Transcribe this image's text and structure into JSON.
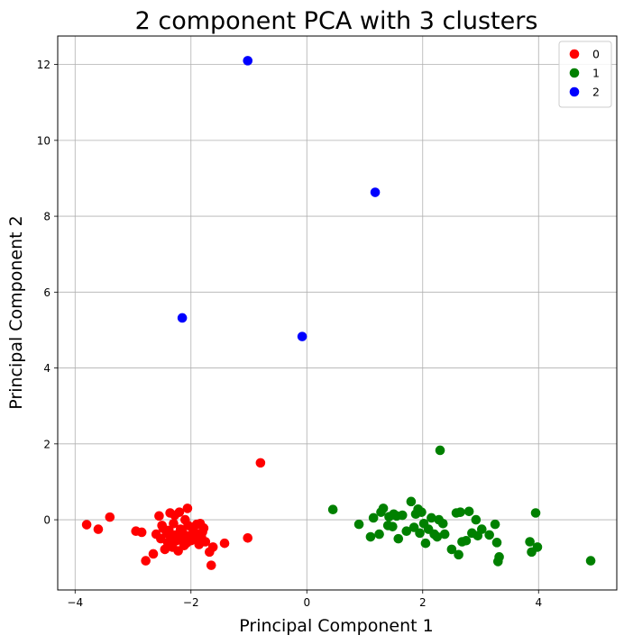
{
  "chart_data": {
    "type": "scatter",
    "title": "2 component PCA with 3 clusters",
    "xlabel": "Principal Component 1",
    "ylabel": "Principal Component 2",
    "xlim": [
      -4.3,
      5.35
    ],
    "ylim": [
      -1.85,
      12.75
    ],
    "xticks": [
      -4,
      -2,
      0,
      2,
      4
    ],
    "yticks": [
      0,
      2,
      4,
      6,
      8,
      10,
      12
    ],
    "grid": true,
    "legend_position": "top-right",
    "series": [
      {
        "name": "0",
        "color": "#ff0000",
        "points": [
          [
            -3.8,
            -0.13
          ],
          [
            -3.6,
            -0.25
          ],
          [
            -3.4,
            0.07
          ],
          [
            -2.95,
            -0.3
          ],
          [
            -2.85,
            -0.33
          ],
          [
            -2.78,
            -1.08
          ],
          [
            -2.65,
            -0.9
          ],
          [
            -2.6,
            -0.38
          ],
          [
            -2.55,
            0.1
          ],
          [
            -2.52,
            -0.5
          ],
          [
            -2.5,
            -0.15
          ],
          [
            -2.48,
            -0.22
          ],
          [
            -2.45,
            -0.78
          ],
          [
            -2.42,
            -0.35
          ],
          [
            -2.4,
            -0.6
          ],
          [
            -2.38,
            -0.28
          ],
          [
            -2.36,
            0.18
          ],
          [
            -2.35,
            -0.45
          ],
          [
            -2.32,
            -0.72
          ],
          [
            -2.3,
            -0.1
          ],
          [
            -2.28,
            0.12
          ],
          [
            -2.26,
            -0.4
          ],
          [
            -2.25,
            -0.55
          ],
          [
            -2.22,
            -0.82
          ],
          [
            -2.2,
            0.2
          ],
          [
            -2.18,
            -0.25
          ],
          [
            -2.16,
            -0.5
          ],
          [
            -2.14,
            -0.35
          ],
          [
            -2.12,
            -0.68
          ],
          [
            -2.1,
            0.0
          ],
          [
            -2.08,
            -0.62
          ],
          [
            -2.06,
            0.3
          ],
          [
            -2.05,
            -0.15
          ],
          [
            -2.03,
            -0.42
          ],
          [
            -2.0,
            -0.55
          ],
          [
            -1.98,
            -0.2
          ],
          [
            -1.95,
            -0.3
          ],
          [
            -1.92,
            -0.48
          ],
          [
            -1.9,
            -0.12
          ],
          [
            -1.88,
            -0.38
          ],
          [
            -1.86,
            -0.65
          ],
          [
            -1.84,
            -0.1
          ],
          [
            -1.82,
            -0.45
          ],
          [
            -1.8,
            -0.32
          ],
          [
            -1.78,
            -0.22
          ],
          [
            -1.75,
            -0.58
          ],
          [
            -1.68,
            -0.85
          ],
          [
            -1.65,
            -1.2
          ],
          [
            -1.62,
            -0.72
          ],
          [
            -1.42,
            -0.62
          ],
          [
            -1.02,
            -0.48
          ],
          [
            -0.8,
            1.5
          ]
        ]
      },
      {
        "name": "1",
        "color": "#008000",
        "points": [
          [
            0.45,
            0.27
          ],
          [
            0.9,
            -0.12
          ],
          [
            1.1,
            -0.45
          ],
          [
            1.15,
            0.05
          ],
          [
            1.25,
            -0.38
          ],
          [
            1.28,
            0.2
          ],
          [
            1.32,
            0.3
          ],
          [
            1.4,
            -0.15
          ],
          [
            1.42,
            0.08
          ],
          [
            1.48,
            -0.18
          ],
          [
            1.5,
            0.15
          ],
          [
            1.55,
            0.1
          ],
          [
            1.58,
            -0.5
          ],
          [
            1.65,
            0.12
          ],
          [
            1.72,
            -0.3
          ],
          [
            1.8,
            0.48
          ],
          [
            1.85,
            -0.2
          ],
          [
            1.88,
            0.15
          ],
          [
            1.92,
            0.28
          ],
          [
            1.95,
            -0.35
          ],
          [
            1.98,
            0.2
          ],
          [
            2.02,
            -0.1
          ],
          [
            2.05,
            -0.62
          ],
          [
            2.1,
            -0.25
          ],
          [
            2.15,
            0.05
          ],
          [
            2.2,
            -0.38
          ],
          [
            2.25,
            -0.45
          ],
          [
            2.28,
            0.0
          ],
          [
            2.3,
            1.83
          ],
          [
            2.35,
            -0.1
          ],
          [
            2.38,
            -0.38
          ],
          [
            2.5,
            -0.78
          ],
          [
            2.58,
            0.18
          ],
          [
            2.62,
            -0.92
          ],
          [
            2.65,
            0.2
          ],
          [
            2.68,
            -0.58
          ],
          [
            2.75,
            -0.55
          ],
          [
            2.8,
            0.22
          ],
          [
            2.85,
            -0.35
          ],
          [
            2.92,
            0.0
          ],
          [
            2.95,
            -0.42
          ],
          [
            3.02,
            -0.25
          ],
          [
            3.15,
            -0.4
          ],
          [
            3.25,
            -0.12
          ],
          [
            3.28,
            -0.6
          ],
          [
            3.3,
            -1.1
          ],
          [
            3.32,
            -0.98
          ],
          [
            3.85,
            -0.58
          ],
          [
            3.88,
            -0.85
          ],
          [
            3.95,
            0.18
          ],
          [
            3.98,
            -0.72
          ],
          [
            4.9,
            -1.08
          ]
        ]
      },
      {
        "name": "2",
        "color": "#0000ff",
        "points": [
          [
            -1.02,
            12.1
          ],
          [
            1.18,
            8.63
          ],
          [
            -2.15,
            5.32
          ],
          [
            -0.08,
            4.83
          ]
        ]
      }
    ]
  }
}
